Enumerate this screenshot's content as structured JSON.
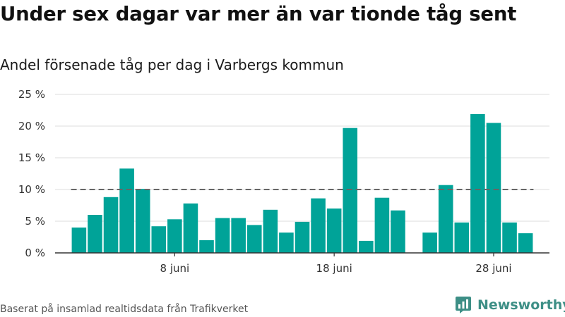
{
  "title": "Under sex dagar var mer än var tionde tåg sent",
  "subtitle": "Andel försenade tåg per dag i Varbergs kommun",
  "source": "Baserat på insamlad realtidsdata från Trafikverket",
  "brand": {
    "name": "Newsworthy",
    "icon": "newsworthy-logo-icon"
  },
  "colors": {
    "bar": "#00a398",
    "reference_line": "#666666",
    "grid": "#dddddd",
    "axis": "#333333",
    "brand": "#3d8f86"
  },
  "chart_data": {
    "type": "bar",
    "title": "Under sex dagar var mer än var tionde tåg sent",
    "subtitle": "Andel försenade tåg per dag i Varbergs kommun",
    "x": [
      2,
      3,
      4,
      5,
      6,
      7,
      8,
      9,
      10,
      11,
      12,
      13,
      14,
      15,
      16,
      17,
      18,
      19,
      20,
      21,
      22,
      23,
      24,
      25,
      26,
      27,
      28,
      29,
      30
    ],
    "values": [
      4.0,
      6.0,
      8.8,
      13.3,
      10.1,
      4.2,
      5.3,
      7.8,
      2.0,
      5.5,
      5.5,
      4.4,
      6.8,
      3.2,
      4.9,
      8.6,
      7.0,
      19.7,
      1.9,
      8.7,
      6.7,
      null,
      3.2,
      10.7,
      4.8,
      21.9,
      20.5,
      4.8,
      3.1
    ],
    "xlim": [
      0.5,
      31.5
    ],
    "ylim": [
      0,
      25
    ],
    "yticks": [
      0,
      5,
      10,
      15,
      20,
      25
    ],
    "ytick_labels": [
      "0 %",
      "5 %",
      "10 %",
      "15 %",
      "20 %",
      "25 %"
    ],
    "xticks": [
      8,
      18,
      28
    ],
    "xtick_labels": [
      "8 juni",
      "18 juni",
      "28 juni"
    ],
    "reference_line": {
      "y": 10,
      "from": 2,
      "to": 30,
      "style": "dashed"
    },
    "grid": "horizontal"
  }
}
